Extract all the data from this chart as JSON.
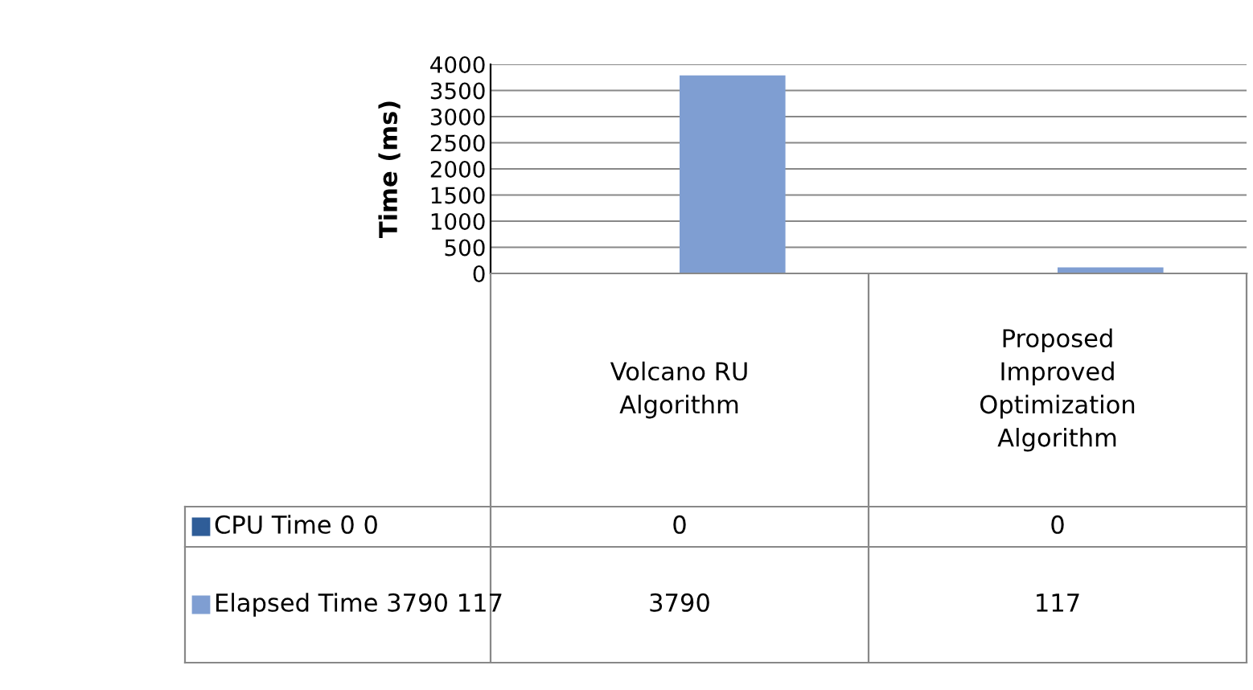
{
  "chart_data": {
    "type": "bar",
    "ylabel": "Time (ms)",
    "categories": [
      "Volcano RU Algorithm",
      "Proposed Improved Optimization Algorithm"
    ],
    "series": [
      {
        "name": "CPU Time 0 0",
        "color": "#2f5d98",
        "values": [
          0,
          0
        ]
      },
      {
        "name": "Elapsed Time 3790 117",
        "color": "#7f9ed2",
        "values": [
          3790,
          117
        ]
      }
    ],
    "ylim": [
      0,
      4000
    ],
    "yticks": [
      0,
      500,
      1000,
      1500,
      2000,
      2500,
      3000,
      3500,
      4000
    ],
    "grid": "y",
    "data_labels": true,
    "legend": "bottom left"
  }
}
